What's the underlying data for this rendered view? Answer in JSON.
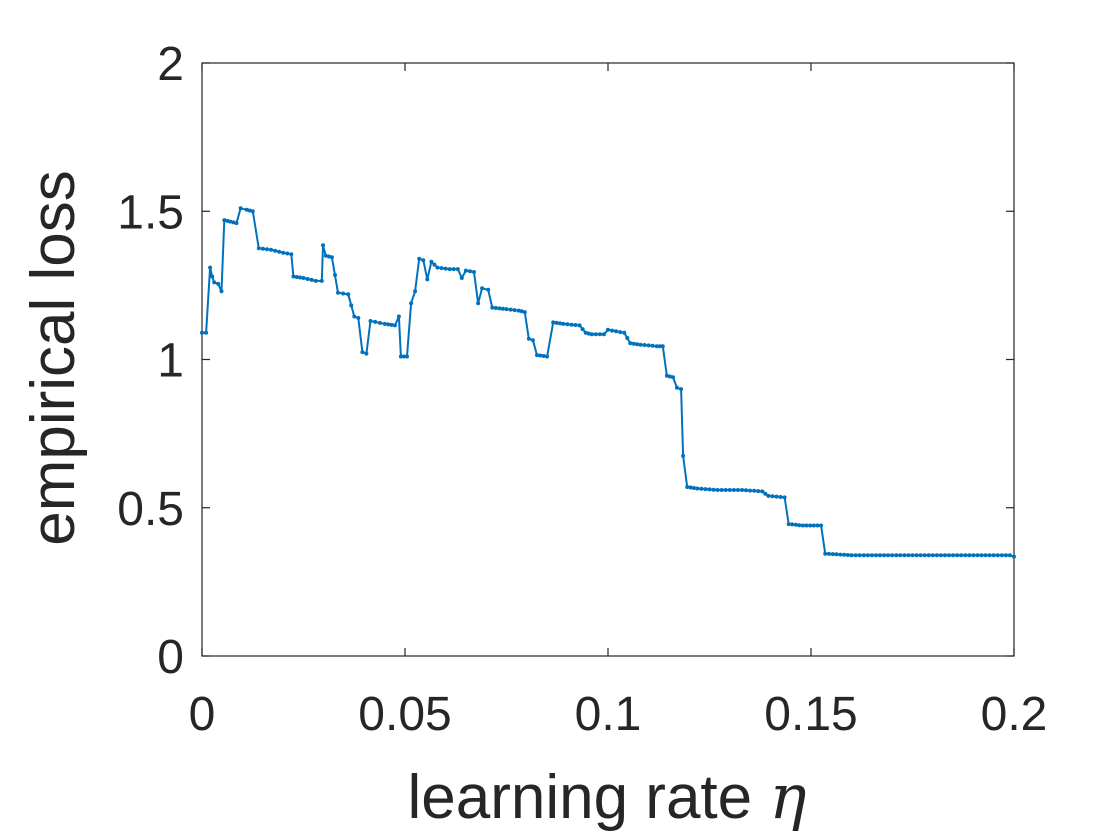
{
  "chart_data": {
    "type": "line",
    "xlabel": "learning rate",
    "xlabel_symbol": "η",
    "ylabel": "empirical loss",
    "xlim": [
      0,
      0.2
    ],
    "ylim": [
      0,
      2
    ],
    "x_ticks": [
      0,
      0.05,
      0.1,
      0.15,
      0.2
    ],
    "x_tick_labels": [
      "0",
      "0.05",
      "0.1",
      "0.15",
      "0.2"
    ],
    "y_ticks": [
      0,
      0.5,
      1,
      1.5,
      2
    ],
    "y_tick_labels": [
      "0",
      "0.5",
      "1",
      "1.5",
      "2"
    ],
    "grid": false,
    "series_color": "#0072BD",
    "series": [
      {
        "points": [
          [
            0.0,
            1.09
          ],
          [
            0.001,
            1.09
          ],
          [
            0.002,
            1.31
          ],
          [
            0.0025,
            1.28
          ],
          [
            0.003,
            1.26
          ],
          [
            0.004,
            1.255
          ],
          [
            0.0048,
            1.23
          ],
          [
            0.0055,
            1.47
          ],
          [
            0.007,
            1.465
          ],
          [
            0.0085,
            1.46
          ],
          [
            0.0095,
            1.51
          ],
          [
            0.011,
            1.505
          ],
          [
            0.0125,
            1.5
          ],
          [
            0.014,
            1.375
          ],
          [
            0.017,
            1.37
          ],
          [
            0.02,
            1.36
          ],
          [
            0.022,
            1.355
          ],
          [
            0.0225,
            1.28
          ],
          [
            0.025,
            1.275
          ],
          [
            0.028,
            1.265
          ],
          [
            0.0295,
            1.265
          ],
          [
            0.0298,
            1.385
          ],
          [
            0.0305,
            1.35
          ],
          [
            0.032,
            1.345
          ],
          [
            0.0335,
            1.225
          ],
          [
            0.036,
            1.22
          ],
          [
            0.0375,
            1.145
          ],
          [
            0.0385,
            1.14
          ],
          [
            0.0395,
            1.025
          ],
          [
            0.0405,
            1.02
          ],
          [
            0.0415,
            1.13
          ],
          [
            0.045,
            1.12
          ],
          [
            0.0475,
            1.115
          ],
          [
            0.0485,
            1.145
          ],
          [
            0.049,
            1.01
          ],
          [
            0.0505,
            1.01
          ],
          [
            0.0515,
            1.19
          ],
          [
            0.0525,
            1.23
          ],
          [
            0.0535,
            1.34
          ],
          [
            0.0545,
            1.335
          ],
          [
            0.0555,
            1.27
          ],
          [
            0.0565,
            1.33
          ],
          [
            0.058,
            1.31
          ],
          [
            0.061,
            1.305
          ],
          [
            0.063,
            1.305
          ],
          [
            0.064,
            1.275
          ],
          [
            0.065,
            1.3
          ],
          [
            0.067,
            1.295
          ],
          [
            0.068,
            1.19
          ],
          [
            0.069,
            1.24
          ],
          [
            0.0705,
            1.235
          ],
          [
            0.0715,
            1.175
          ],
          [
            0.075,
            1.17
          ],
          [
            0.078,
            1.165
          ],
          [
            0.0795,
            1.16
          ],
          [
            0.0805,
            1.07
          ],
          [
            0.0815,
            1.065
          ],
          [
            0.0825,
            1.015
          ],
          [
            0.085,
            1.01
          ],
          [
            0.0865,
            1.125
          ],
          [
            0.089,
            1.12
          ],
          [
            0.093,
            1.115
          ],
          [
            0.0945,
            1.09
          ],
          [
            0.096,
            1.085
          ],
          [
            0.099,
            1.085
          ],
          [
            0.1,
            1.1
          ],
          [
            0.102,
            1.095
          ],
          [
            0.104,
            1.09
          ],
          [
            0.1055,
            1.055
          ],
          [
            0.108,
            1.05
          ],
          [
            0.112,
            1.045
          ],
          [
            0.1135,
            1.045
          ],
          [
            0.1145,
            0.945
          ],
          [
            0.116,
            0.94
          ],
          [
            0.117,
            0.905
          ],
          [
            0.118,
            0.9
          ],
          [
            0.1185,
            0.675
          ],
          [
            0.1195,
            0.57
          ],
          [
            0.122,
            0.565
          ],
          [
            0.127,
            0.56
          ],
          [
            0.133,
            0.56
          ],
          [
            0.138,
            0.555
          ],
          [
            0.1395,
            0.54
          ],
          [
            0.1435,
            0.535
          ],
          [
            0.1445,
            0.445
          ],
          [
            0.148,
            0.44
          ],
          [
            0.1525,
            0.44
          ],
          [
            0.1535,
            0.345
          ],
          [
            0.16,
            0.34
          ],
          [
            0.175,
            0.34
          ],
          [
            0.19,
            0.34
          ],
          [
            0.199,
            0.34
          ],
          [
            0.2,
            0.335
          ]
        ]
      }
    ]
  }
}
